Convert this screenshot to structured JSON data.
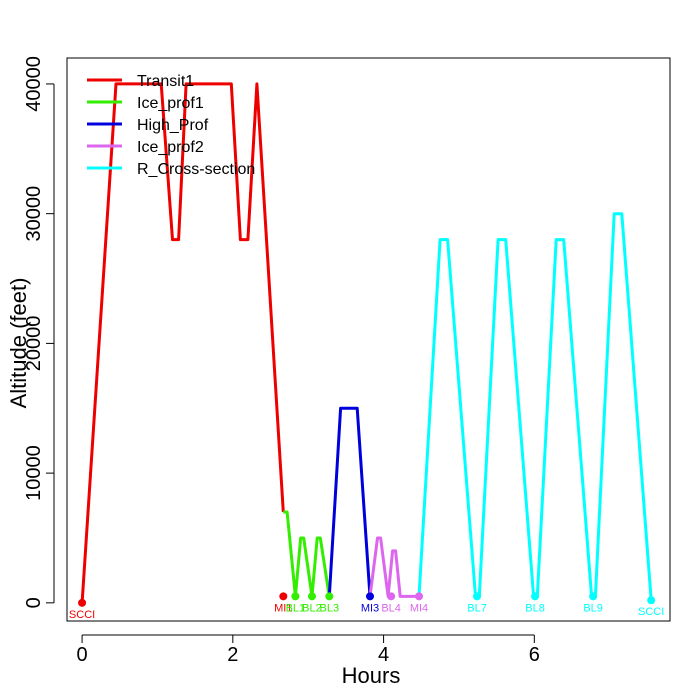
{
  "chart_data": {
    "type": "line",
    "title": "",
    "xlabel": "Hours",
    "ylabel": "Altitude (feet)",
    "xlim": [
      -0.2,
      7.8
    ],
    "ylim": [
      -1400,
      42000
    ],
    "x_ticks": [
      0,
      2,
      4,
      6
    ],
    "y_ticks": [
      0,
      10000,
      20000,
      30000,
      40000
    ],
    "legend_position": "top-left",
    "series": [
      {
        "name": "Transit1",
        "color": "#ee0000",
        "x": [
          0,
          0.45,
          1.05,
          1.2,
          1.28,
          1.38,
          1.98,
          2.1,
          2.2,
          2.32,
          2.67
        ],
        "y": [
          0,
          40000,
          40000,
          28000,
          28000,
          40000,
          40000,
          28000,
          28000,
          40000,
          7000
        ]
      },
      {
        "name": "Ice_prof1",
        "color": "#33ee00",
        "x": [
          2.67,
          2.72,
          2.83,
          2.9,
          2.94,
          3.05,
          3.12,
          3.16,
          3.28
        ],
        "y": [
          7000,
          7000,
          500,
          5000,
          5000,
          500,
          5000,
          5000,
          500
        ]
      },
      {
        "name": "High_Prof",
        "color": "#0000dd",
        "x": [
          3.28,
          3.43,
          3.65,
          3.82
        ],
        "y": [
          500,
          15000,
          15000,
          500
        ]
      },
      {
        "name": "Ice_prof2",
        "color": "#dd66ee",
        "x": [
          3.82,
          3.92,
          3.96,
          4.06,
          4.12,
          4.16,
          4.22,
          4.47
        ],
        "y": [
          500,
          5000,
          5000,
          500,
          4000,
          4000,
          500,
          500
        ]
      },
      {
        "name": "R_Cross-section",
        "color": "#00ffff",
        "x": [
          4.47,
          4.75,
          4.85,
          5.22,
          5.27,
          5.52,
          5.62,
          5.99,
          6.04,
          6.29,
          6.39,
          6.76,
          6.81,
          7.06,
          7.16,
          7.55
        ],
        "y": [
          500,
          28000,
          28000,
          500,
          500,
          28000,
          28000,
          500,
          500,
          28000,
          28000,
          500,
          500,
          30000,
          30000,
          200
        ]
      }
    ],
    "waypoints": [
      {
        "label": "SCCI",
        "x": 0,
        "y": 0,
        "color": "#ee0000"
      },
      {
        "label": "MI1",
        "x": 2.67,
        "y": 500,
        "color": "#ee0000"
      },
      {
        "label": "BL1",
        "x": 2.83,
        "y": 500,
        "color": "#33ee00"
      },
      {
        "label": "BL2",
        "x": 3.05,
        "y": 500,
        "color": "#33ee00"
      },
      {
        "label": "BL3",
        "x": 3.28,
        "y": 500,
        "color": "#33ee00"
      },
      {
        "label": "MI3",
        "x": 3.82,
        "y": 500,
        "color": "#0000dd"
      },
      {
        "label": "BL4",
        "x": 4.1,
        "y": 500,
        "color": "#dd66ee"
      },
      {
        "label": "MI4",
        "x": 4.47,
        "y": 500,
        "color": "#dd66ee"
      },
      {
        "label": "BL7",
        "x": 5.24,
        "y": 500,
        "color": "#00ffff"
      },
      {
        "label": "BL8",
        "x": 6.01,
        "y": 500,
        "color": "#00ffff"
      },
      {
        "label": "BL9",
        "x": 6.78,
        "y": 500,
        "color": "#00ffff"
      },
      {
        "label": "SCCI",
        "x": 7.55,
        "y": 200,
        "color": "#00ffff"
      }
    ]
  }
}
